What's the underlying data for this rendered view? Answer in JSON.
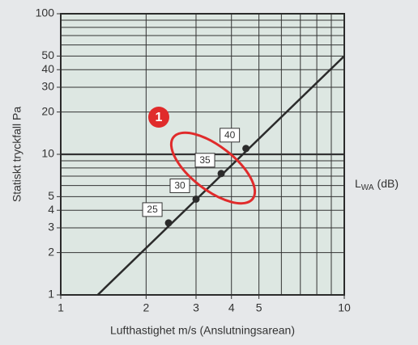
{
  "chart_data": {
    "type": "line",
    "xlabel": "Lufthastighet m/s (Anslutningsarean)",
    "ylabel": "Statiskt tryckfall Pa",
    "xscale": "log",
    "yscale": "log",
    "xlim": [
      1,
      10
    ],
    "ylim": [
      1,
      100
    ],
    "xticks": [
      1,
      2,
      3,
      4,
      5,
      10
    ],
    "yticks": [
      1,
      2,
      3,
      4,
      5,
      10,
      20,
      30,
      40,
      50,
      100
    ],
    "xgrid": [
      2,
      3,
      4,
      5,
      6,
      7,
      8,
      9
    ],
    "ygrid": [
      2,
      3,
      4,
      5,
      6,
      7,
      8,
      9,
      10,
      20,
      30,
      40,
      50,
      60,
      70,
      80,
      90
    ],
    "y_emphasis_line": 10,
    "series": [
      {
        "color": "#2b2b2b",
        "x": [
          1.35,
          10
        ],
        "values": [
          1,
          50
        ]
      }
    ],
    "points": {
      "color": "#2b2b2b",
      "x": [
        2.4,
        3,
        3.68,
        4.5
      ],
      "values": [
        3.25,
        4.8,
        7.3,
        11
      ],
      "labels": [
        "25",
        "30",
        "35",
        "40"
      ]
    },
    "annotations": {
      "badge": "1",
      "side_label": {
        "main": "L",
        "sub": "WA",
        "unit": "(dB)"
      }
    }
  }
}
